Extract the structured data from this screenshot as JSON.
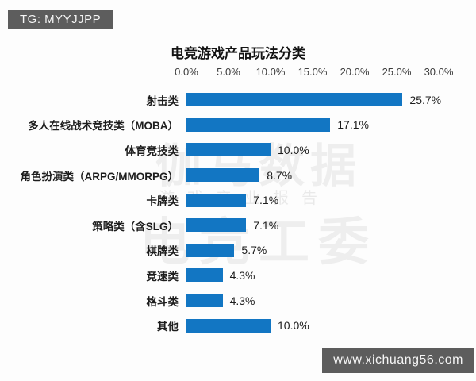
{
  "overlay": {
    "telegram_badge": "TG: MYYJJPP",
    "website_badge": "www.xichuang56.com",
    "badge_bg": "#5d5d5d"
  },
  "watermark": {
    "line1": "伽马数据",
    "line2": "游戏产业报告",
    "line3": "电竞工委"
  },
  "chart_data": {
    "type": "bar",
    "orientation": "horizontal",
    "title": "电竞游戏产品玩法分类",
    "categories": [
      "射击类",
      "多人在线战术竞技类（MOBA）",
      "体育竞技类",
      "角色扮演类（ARPG/MMORPG）",
      "卡牌类",
      "策略类（含SLG）",
      "棋牌类",
      "竞速类",
      "格斗类",
      "其他"
    ],
    "values": [
      25.7,
      17.1,
      10.0,
      8.7,
      7.1,
      7.1,
      5.7,
      4.3,
      4.3,
      10.0
    ],
    "value_labels": [
      "25.7%",
      "17.1%",
      "10.0%",
      "8.7%",
      "7.1%",
      "7.1%",
      "5.7%",
      "4.3%",
      "4.3%",
      "10.0%"
    ],
    "x_ticks": [
      "0.0%",
      "5.0%",
      "10.0%",
      "15.0%",
      "20.0%",
      "25.0%",
      "30.0%"
    ],
    "xlim": [
      0,
      30
    ],
    "axis_position": "top",
    "grid": false,
    "legend": "none",
    "bar_color": "#1276c3"
  }
}
